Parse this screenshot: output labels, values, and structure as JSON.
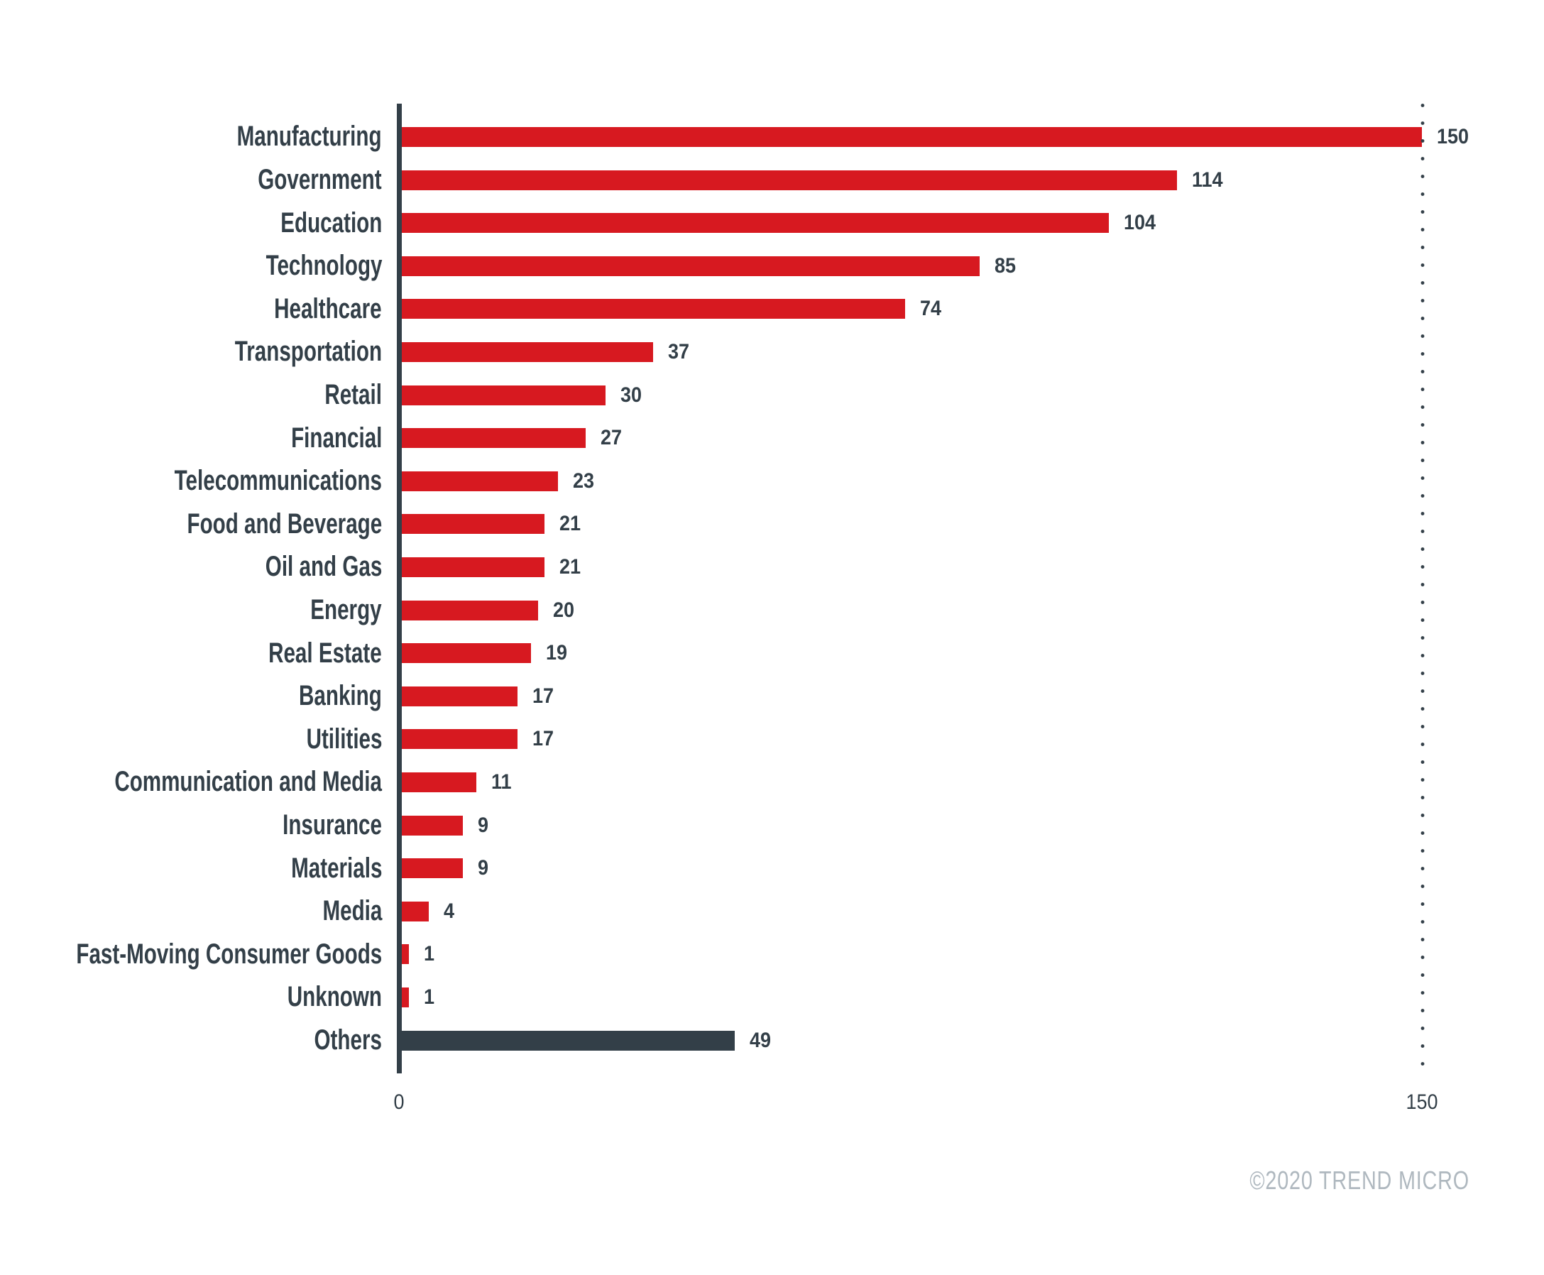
{
  "chart_data": {
    "type": "bar",
    "orientation": "horizontal",
    "title": "",
    "xlabel": "",
    "ylabel": "",
    "xlim": [
      0,
      150
    ],
    "x_tick_labels": [
      "0",
      "150"
    ],
    "grid": "off",
    "guide_line": {
      "x": 150,
      "style": "dotted"
    },
    "value_labels_shown": true,
    "legend": "none",
    "categories": [
      "Manufacturing",
      "Government",
      "Education",
      "Technology",
      "Healthcare",
      "Transportation",
      "Retail",
      "Financial",
      "Telecommunications",
      "Food and Beverage",
      "Oil and Gas",
      "Energy",
      "Real Estate",
      "Banking",
      "Utilities",
      "Communication and Media",
      "Insurance",
      "Materials",
      "Media",
      "Fast-Moving Consumer Goods",
      "Unknown",
      "Others"
    ],
    "values": [
      150,
      114,
      104,
      85,
      74,
      37,
      30,
      27,
      23,
      21,
      21,
      20,
      19,
      17,
      17,
      11,
      9,
      9,
      4,
      1,
      1,
      49
    ],
    "bar_colors": {
      "default": "#D71920",
      "by_category": {
        "Others": "#333F48"
      }
    }
  },
  "footer": {
    "watermark": "©2020 TREND MICRO"
  },
  "colors": {
    "text": "#333F48",
    "axis": "#333F48",
    "watermark": "#AFB8BF",
    "background": "#FFFFFF"
  }
}
